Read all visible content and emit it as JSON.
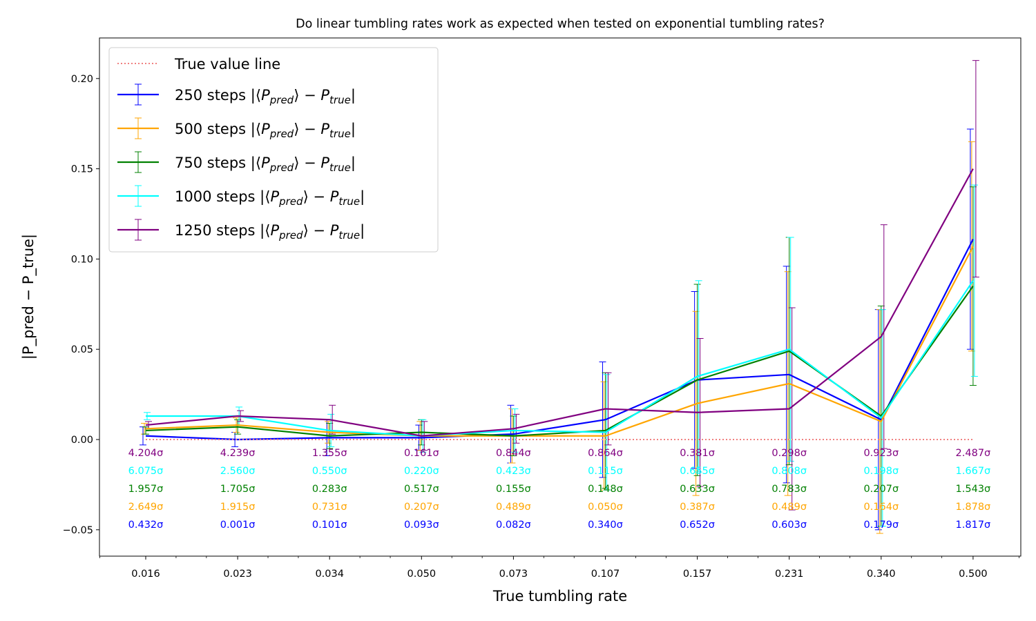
{
  "chart_data": {
    "type": "line",
    "title": "Do linear tumbling rates work as expected when tested on exponential tumbling rates?",
    "xlabel": "True tumbling rate",
    "ylabel": "|P_pred − P_true|",
    "categories": [
      "0.016",
      "0.023",
      "0.034",
      "0.050",
      "0.073",
      "0.107",
      "0.157",
      "0.231",
      "0.340",
      "0.500"
    ],
    "x": [
      0.016,
      0.023,
      0.034,
      0.05,
      0.073,
      0.107,
      0.157,
      0.231,
      0.34,
      0.5
    ],
    "ylim": [
      -0.065,
      0.22
    ],
    "yticks": [
      -0.05,
      0.0,
      0.05,
      0.1,
      0.15,
      0.2
    ],
    "ytick_labels": [
      "−0.05",
      "0.00",
      "0.05",
      "0.10",
      "0.15",
      "0.20"
    ],
    "reference_line": {
      "name": "True value line",
      "value": 0.0,
      "color": "#f08080"
    },
    "legend_position": "top-left",
    "series": [
      {
        "name": "250 steps",
        "color": "#0000ff",
        "values": [
          0.002,
          0.0,
          0.001,
          0.001,
          0.003,
          0.011,
          0.033,
          0.036,
          0.011,
          0.111
        ],
        "errors": [
          0.005,
          0.004,
          0.01,
          0.007,
          0.016,
          0.032,
          0.049,
          0.06,
          0.061,
          0.061
        ],
        "sigma_labels": [
          "0.432σ",
          "0.001σ",
          "0.101σ",
          "0.093σ",
          "0.082σ",
          "0.340σ",
          "0.652σ",
          "0.603σ",
          "0.179σ",
          "1.817σ"
        ]
      },
      {
        "name": "500 steps",
        "color": "#ffa500",
        "values": [
          0.006,
          0.008,
          0.004,
          0.002,
          0.002,
          0.002,
          0.02,
          0.031,
          0.01,
          0.107
        ],
        "errors": [
          0.003,
          0.004,
          0.006,
          0.008,
          0.015,
          0.03,
          0.051,
          0.062,
          0.062,
          0.058
        ],
        "sigma_labels": [
          "2.649σ",
          "1.915σ",
          "0.731σ",
          "0.207σ",
          "0.489σ",
          "0.050σ",
          "0.387σ",
          "0.489σ",
          "0.164σ",
          "1.878σ"
        ]
      },
      {
        "name": "750 steps",
        "color": "#008000",
        "values": [
          0.005,
          0.007,
          0.002,
          0.004,
          0.002,
          0.005,
          0.033,
          0.049,
          0.013,
          0.085
        ],
        "errors": [
          0.002,
          0.004,
          0.007,
          0.007,
          0.011,
          0.032,
          0.053,
          0.063,
          0.061,
          0.055
        ],
        "sigma_labels": [
          "1.957σ",
          "1.705σ",
          "0.283σ",
          "0.517σ",
          "0.155σ",
          "0.148σ",
          "0.633σ",
          "0.783σ",
          "0.207σ",
          "1.543σ"
        ]
      },
      {
        "name": "1000 steps",
        "color": "#00ffff",
        "values": [
          0.013,
          0.013,
          0.005,
          0.002,
          0.005,
          0.004,
          0.035,
          0.05,
          0.012,
          0.088
        ],
        "errors": [
          0.002,
          0.005,
          0.009,
          0.009,
          0.012,
          0.032,
          0.053,
          0.062,
          0.06,
          0.053
        ],
        "sigma_labels": [
          "6.075σ",
          "2.560σ",
          "0.550σ",
          "0.220σ",
          "0.423σ",
          "0.115σ",
          "0.655σ",
          "0.808σ",
          "0.198σ",
          "1.667σ"
        ]
      },
      {
        "name": "1250 steps",
        "color": "#800080",
        "values": [
          0.008,
          0.013,
          0.011,
          0.002,
          0.006,
          0.017,
          0.015,
          0.017,
          0.057,
          0.15
        ],
        "errors": [
          0.002,
          0.003,
          0.008,
          0.008,
          0.008,
          0.02,
          0.041,
          0.056,
          0.062,
          0.06
        ],
        "sigma_labels": [
          "4.204σ",
          "4.239σ",
          "1.355σ",
          "0.161σ",
          "0.844σ",
          "0.864σ",
          "0.381σ",
          "0.298σ",
          "0.923σ",
          "2.487σ"
        ]
      }
    ]
  }
}
